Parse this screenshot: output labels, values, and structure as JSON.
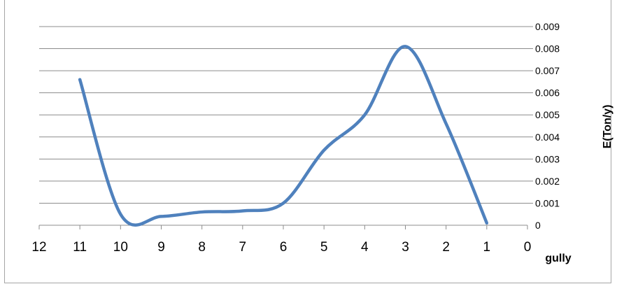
{
  "chart_data": {
    "type": "line",
    "title": "",
    "xlabel": "gully",
    "ylabel": "E(Ton/y)",
    "x_axis": {
      "reversed": true,
      "range": [
        0,
        12
      ],
      "ticks": [
        "12",
        "11",
        "10",
        "9",
        "8",
        "7",
        "6",
        "5",
        "4",
        "3",
        "2",
        "1",
        "0"
      ]
    },
    "y_axis": {
      "position": "right",
      "range": [
        0,
        0.009
      ],
      "ticks": [
        "0",
        "0.001",
        "0.002",
        "0.003",
        "0.004",
        "0.005",
        "0.006",
        "0.007",
        "0.008",
        "0.009"
      ]
    },
    "grid": "horizontal",
    "smooth": true,
    "series": [
      {
        "color": "#4f81bd",
        "points": [
          {
            "x": 11,
            "y": 0.0066
          },
          {
            "x": 10,
            "y": 0.0005
          },
          {
            "x": 9,
            "y": 0.0004
          },
          {
            "x": 8,
            "y": 0.0006
          },
          {
            "x": 7,
            "y": 0.00065
          },
          {
            "x": 6,
            "y": 0.001
          },
          {
            "x": 5,
            "y": 0.0034
          },
          {
            "x": 4,
            "y": 0.005
          },
          {
            "x": 3,
            "y": 0.0081
          },
          {
            "x": 2,
            "y": 0.0046
          },
          {
            "x": 1,
            "y": 0.0001
          }
        ]
      }
    ]
  }
}
